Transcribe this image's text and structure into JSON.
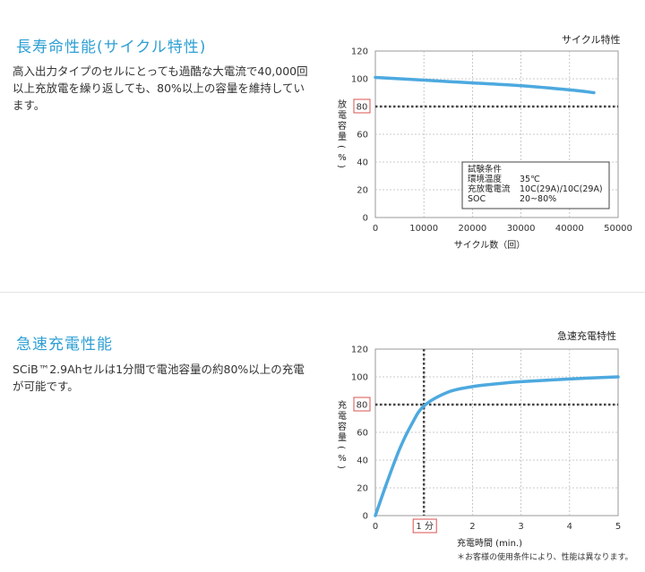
{
  "sections": [
    {
      "title": "長寿命性能(サイクル特性)",
      "description": "高入出力タイプのセルにとっても過酷な大電流で40,000回以上充放電を繰り返しても、80%以上の容量を維持しています。",
      "chart_title": "サイクル特性"
    },
    {
      "title": "急速充電性能",
      "description": "SCiB™2.9Ahセルは1分間で電池容量の約80%以上の充電が可能です。",
      "chart_title": "急速充電特性"
    }
  ],
  "chart_data": [
    {
      "type": "line",
      "title": "サイクル特性",
      "xlabel": "サイクル数（回）",
      "ylabel": "放電容量（%）",
      "xlim": [
        0,
        50000
      ],
      "ylim": [
        0,
        120
      ],
      "xticks": [
        "0",
        "10000",
        "20000",
        "30000",
        "40000",
        "50000"
      ],
      "yticks": [
        "0",
        "20",
        "40",
        "60",
        "80",
        "100",
        "120"
      ],
      "grid": true,
      "series": [
        {
          "x": [
            0,
            10000,
            20000,
            30000,
            40000,
            45000
          ],
          "y": [
            101,
            99,
            97,
            95,
            92,
            90
          ]
        }
      ],
      "reference_line": {
        "y": 80,
        "label": "80"
      },
      "conditions": {
        "title": "試験条件",
        "rows": [
          {
            "label": "環境温度",
            "value": "35℃"
          },
          {
            "label": "充放電電流",
            "value": "10C(29A)/10C(29A)"
          },
          {
            "label": "SOC",
            "value": "20~80%"
          }
        ]
      },
      "line_color": "#4da9df"
    },
    {
      "type": "line",
      "title": "急速充電特性",
      "xlabel": "充電時間 (min.)",
      "ylabel": "充電容量（%）",
      "xlim": [
        0,
        5
      ],
      "ylim": [
        0,
        120
      ],
      "xticks": [
        "0",
        "1",
        "2",
        "3",
        "4",
        "5"
      ],
      "yticks": [
        "0",
        "20",
        "40",
        "60",
        "80",
        "100",
        "120"
      ],
      "grid": true,
      "series": [
        {
          "x": [
            0,
            0.25,
            0.5,
            0.75,
            1.0,
            1.5,
            2.0,
            2.5,
            3.0,
            4.0,
            5.0
          ],
          "y": [
            0,
            25,
            48,
            66,
            79,
            89,
            93,
            95,
            96.5,
            98.5,
            100
          ]
        }
      ],
      "reference_line": {
        "y": 80,
        "label": "80"
      },
      "reference_vline": {
        "x": 1,
        "label": "1 分"
      },
      "note": "＊お客様の使用条件により、性能は異なります。",
      "line_color": "#4da9df"
    }
  ]
}
